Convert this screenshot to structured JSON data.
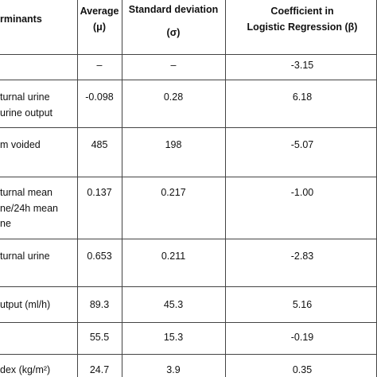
{
  "table": {
    "header": {
      "determinant": "rminants",
      "average": [
        "Average",
        "(μ)"
      ],
      "sd": [
        "Standard deviation",
        "(σ)"
      ],
      "coef": [
        "Coefficient in",
        "Logistic Regression (β)"
      ]
    },
    "rows": [
      {
        "label": [],
        "average": "–",
        "sd": "–",
        "coef": "-3.15"
      },
      {
        "label": [
          "turnal urine",
          "urine output"
        ],
        "average": "-0.098",
        "sd": "0.28",
        "coef": "6.18"
      },
      {
        "label": [
          "m voided"
        ],
        "average": "485",
        "sd": "198",
        "coef": "-5.07"
      },
      {
        "label": [
          "turnal mean",
          "ne/24h mean",
          "ne"
        ],
        "average": "0.137",
        "sd": "0.217",
        "coef": "-1.00"
      },
      {
        "label": [
          "turnal urine"
        ],
        "average": "0.653",
        "sd": "0.211",
        "coef": "-2.83"
      },
      {
        "label": [
          "utput (ml/h)"
        ],
        "average": "89.3",
        "sd": "45.3",
        "coef": "5.16"
      },
      {
        "label": [],
        "average": "55.5",
        "sd": "15.3",
        "coef": "-0.19"
      },
      {
        "label": [
          "dex (kg/m²)"
        ],
        "average": "24.7",
        "sd": "3.9",
        "coef": "0.35"
      }
    ]
  }
}
